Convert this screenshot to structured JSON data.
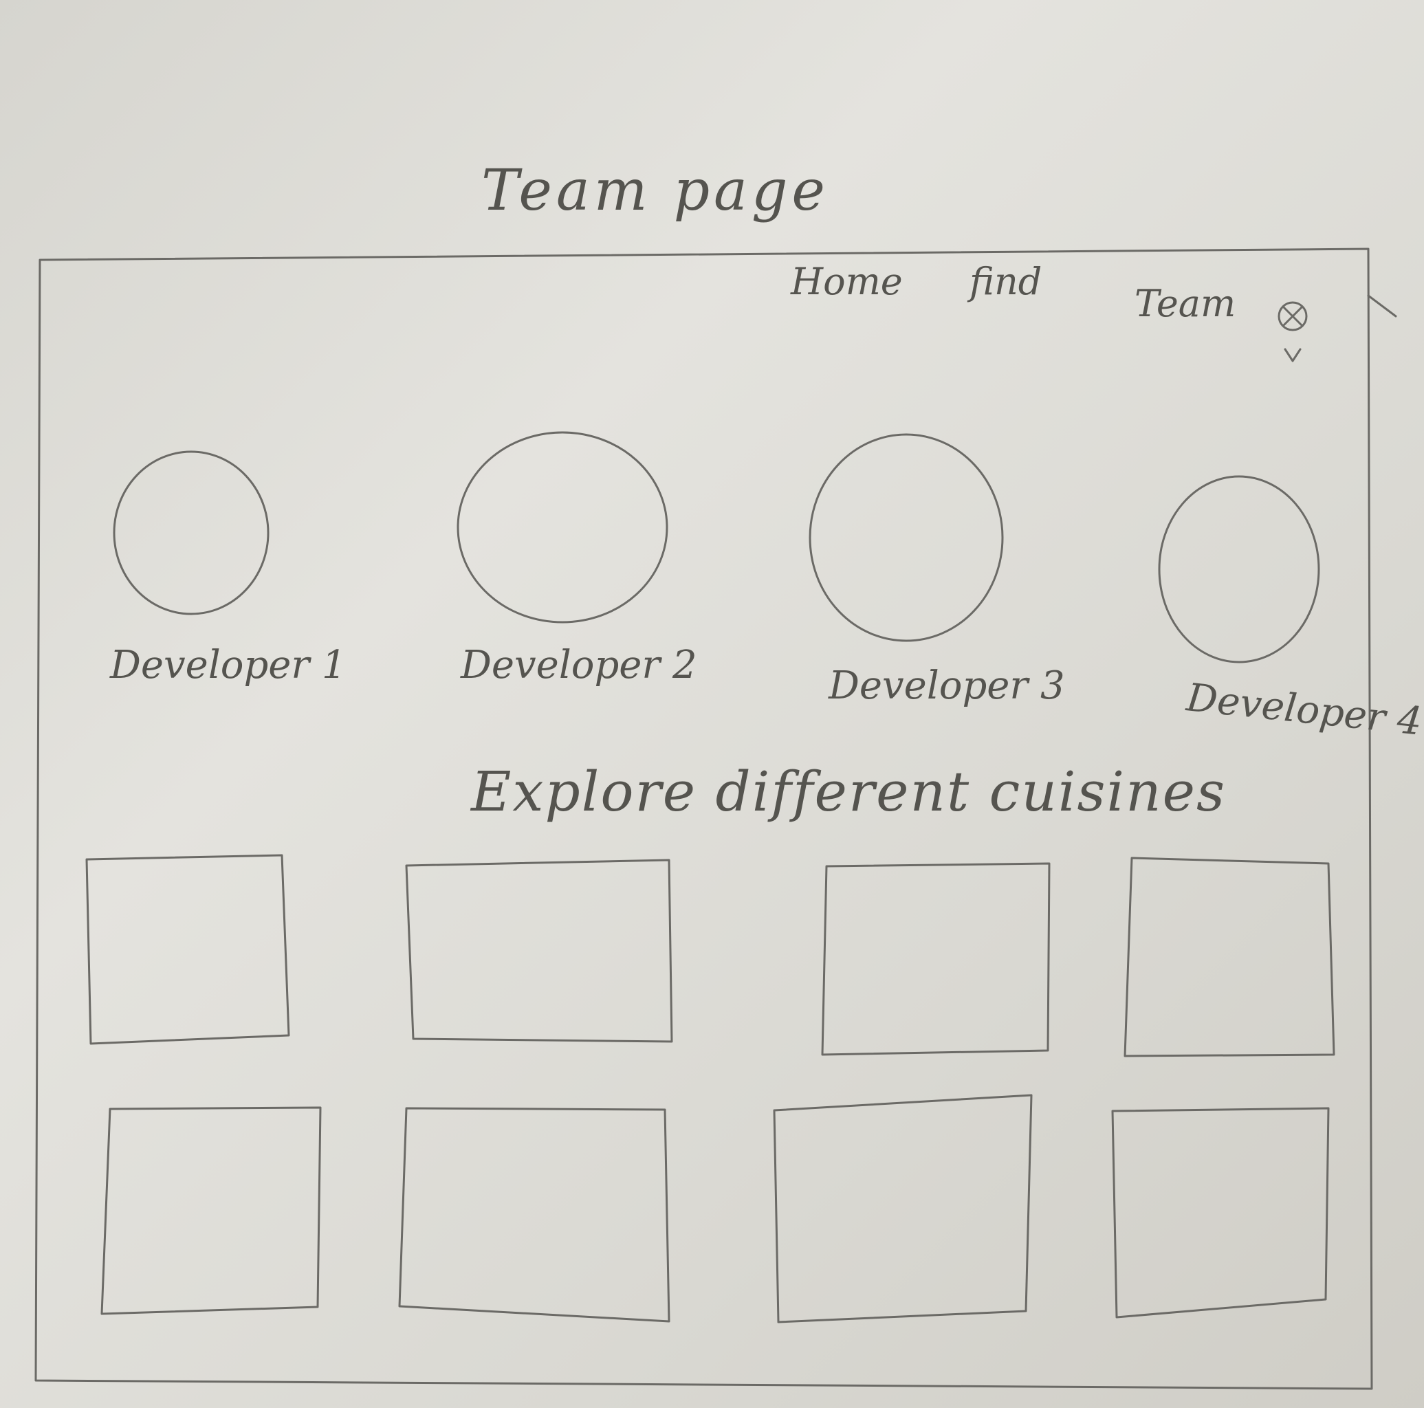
{
  "page": {
    "title": "Team page"
  },
  "nav": {
    "home": "Home",
    "find": "find",
    "team": "Team"
  },
  "developers": [
    {
      "name": "Developer 1"
    },
    {
      "name": "Developer 2"
    },
    {
      "name": "Developer 3"
    },
    {
      "name": "Developer 4"
    }
  ],
  "section": {
    "heading": "Explore different cuisines"
  },
  "cuisine_cards": {
    "rows": 2,
    "per_row": 4
  },
  "colors": {
    "paper": "#dcdbd5",
    "pencil": "#6b6a66"
  }
}
